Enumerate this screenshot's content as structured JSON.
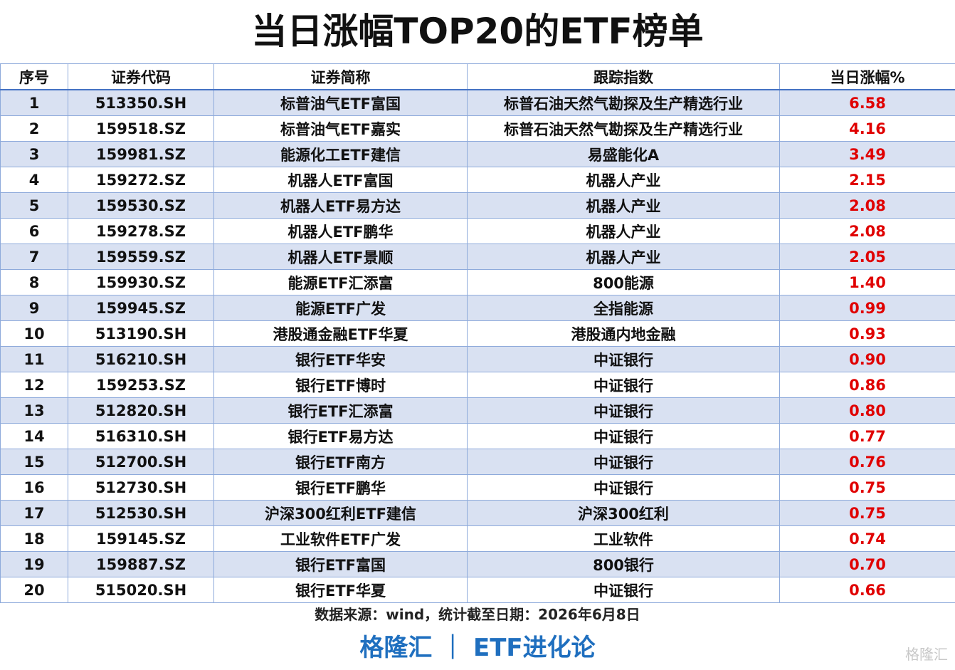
{
  "header": {
    "title": "当日涨幅TOP20的ETF榜单"
  },
  "table": {
    "columns": [
      "序号",
      "证券代码",
      "证券简称",
      "跟踪指数",
      "当日涨幅%"
    ],
    "rows": [
      [
        "1",
        "513350.SH",
        "标普油气ETF富国",
        "标普石油天然气勘探及生产精选行业",
        "6.58"
      ],
      [
        "2",
        "159518.SZ",
        "标普油气ETF嘉实",
        "标普石油天然气勘探及生产精选行业",
        "4.16"
      ],
      [
        "3",
        "159981.SZ",
        "能源化工ETF建信",
        "易盛能化A",
        "3.49"
      ],
      [
        "4",
        "159272.SZ",
        "机器人ETF富国",
        "机器人产业",
        "2.15"
      ],
      [
        "5",
        "159530.SZ",
        "机器人ETF易方达",
        "机器人产业",
        "2.08"
      ],
      [
        "6",
        "159278.SZ",
        "机器人ETF鹏华",
        "机器人产业",
        "2.08"
      ],
      [
        "7",
        "159559.SZ",
        "机器人ETF景顺",
        "机器人产业",
        "2.05"
      ],
      [
        "8",
        "159930.SZ",
        "能源ETF汇添富",
        "800能源",
        "1.40"
      ],
      [
        "9",
        "159945.SZ",
        "能源ETF广发",
        "全指能源",
        "0.99"
      ],
      [
        "10",
        "513190.SH",
        "港股通金融ETF华夏",
        "港股通内地金融",
        "0.93"
      ],
      [
        "11",
        "516210.SH",
        "银行ETF华安",
        "中证银行",
        "0.90"
      ],
      [
        "12",
        "159253.SZ",
        "银行ETF博时",
        "中证银行",
        "0.86"
      ],
      [
        "13",
        "512820.SH",
        "银行ETF汇添富",
        "中证银行",
        "0.80"
      ],
      [
        "14",
        "516310.SH",
        "银行ETF易方达",
        "中证银行",
        "0.77"
      ],
      [
        "15",
        "512700.SH",
        "银行ETF南方",
        "中证银行",
        "0.76"
      ],
      [
        "16",
        "512730.SH",
        "银行ETF鹏华",
        "中证银行",
        "0.75"
      ],
      [
        "17",
        "512530.SH",
        "沪深300红利ETF建信",
        "沪深300红利",
        "0.75"
      ],
      [
        "18",
        "159145.SZ",
        "工业软件ETF广发",
        "工业软件",
        "0.74"
      ],
      [
        "19",
        "159887.SZ",
        "银行ETF富国",
        "800银行",
        "0.70"
      ],
      [
        "20",
        "515020.SH",
        "银行ETF华夏",
        "中证银行",
        "0.66"
      ]
    ]
  },
  "footer": {
    "source": "数据来源：wind，统计截至日期：2026年6月8日",
    "brand": "格隆汇 ｜ ETF进化论",
    "watermark": "格隆汇"
  }
}
